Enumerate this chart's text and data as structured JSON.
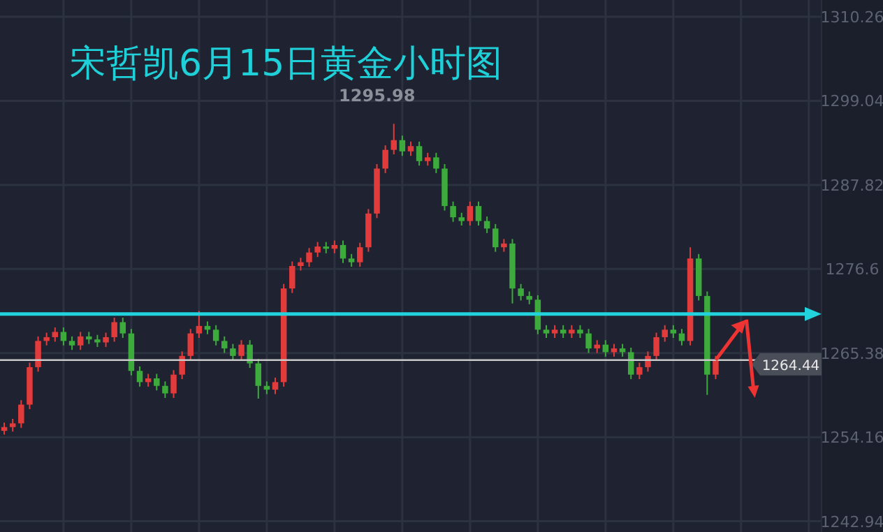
{
  "chart_data": {
    "type": "candlestick",
    "title": "宋哲凯6月15日黄金小时图",
    "categories": [
      null,
      null,
      null,
      null,
      null,
      null,
      null,
      null,
      null,
      null,
      null,
      null,
      null,
      null,
      null,
      null,
      null,
      null,
      null,
      null,
      null,
      null,
      null,
      null,
      null,
      null,
      null,
      null,
      null,
      null,
      null,
      null,
      null,
      null,
      null,
      null,
      null,
      null,
      null,
      null,
      null,
      null,
      null,
      null,
      null,
      null,
      null,
      null,
      null,
      null,
      null,
      null,
      null,
      null,
      null,
      null,
      null,
      null,
      null,
      null,
      null,
      null,
      null,
      null,
      null,
      null,
      null,
      null,
      null,
      null,
      null,
      null,
      null,
      null,
      null,
      null,
      null,
      null,
      null,
      null,
      null,
      null,
      null,
      null,
      null,
      null,
      null,
      null,
      null,
      null,
      null,
      null,
      null,
      null,
      null,
      null,
      null
    ],
    "ohlc": [
      [
        1255.0,
        1256.1,
        1254.5,
        1255.5
      ],
      [
        1255.5,
        1256.6,
        1254.9,
        1256.0
      ],
      [
        1256.0,
        1259.1,
        1255.4,
        1258.5
      ],
      [
        1258.5,
        1264.1,
        1257.9,
        1263.5
      ],
      [
        1263.5,
        1267.6,
        1262.9,
        1267.0
      ],
      [
        1267.0,
        1268.1,
        1266.4,
        1267.5
      ],
      [
        1267.5,
        1268.8,
        1266.9,
        1268.2
      ],
      [
        1268.2,
        1268.8,
        1266.4,
        1267.0
      ],
      [
        1267.0,
        1267.6,
        1265.8,
        1266.4
      ],
      [
        1266.4,
        1268.2,
        1265.8,
        1267.6
      ],
      [
        1267.6,
        1268.2,
        1266.6,
        1267.2
      ],
      [
        1267.2,
        1267.8,
        1266.2,
        1266.8
      ],
      [
        1266.8,
        1268.1,
        1266.2,
        1267.5
      ],
      [
        1267.5,
        1270.1,
        1266.9,
        1269.5
      ],
      [
        1269.5,
        1270.1,
        1267.4,
        1268.0
      ],
      [
        1268.0,
        1268.6,
        1262.4,
        1263.0
      ],
      [
        1263.0,
        1263.6,
        1260.9,
        1261.5
      ],
      [
        1261.5,
        1262.6,
        1260.9,
        1262.0
      ],
      [
        1262.0,
        1262.6,
        1260.4,
        1261.0
      ],
      [
        1261.0,
        1261.6,
        1259.4,
        1260.0
      ],
      [
        1260.0,
        1263.1,
        1259.4,
        1262.5
      ],
      [
        1262.5,
        1265.6,
        1261.9,
        1265.0
      ],
      [
        1265.0,
        1268.6,
        1264.4,
        1268.0
      ],
      [
        1268.0,
        1271.0,
        1267.4,
        1269.0
      ],
      [
        1269.0,
        1269.6,
        1267.9,
        1268.5
      ],
      [
        1268.5,
        1269.1,
        1266.4,
        1267.0
      ],
      [
        1267.0,
        1267.6,
        1265.4,
        1266.0
      ],
      [
        1266.0,
        1266.6,
        1264.4,
        1265.0
      ],
      [
        1265.0,
        1267.1,
        1264.4,
        1266.5
      ],
      [
        1266.5,
        1267.1,
        1263.4,
        1264.0
      ],
      [
        1264.0,
        1264.6,
        1259.3,
        1261.0
      ],
      [
        1261.0,
        1261.6,
        1259.9,
        1260.5
      ],
      [
        1260.5,
        1262.1,
        1259.9,
        1261.5
      ],
      [
        1261.5,
        1274.6,
        1260.9,
        1274.0
      ],
      [
        1274.0,
        1277.6,
        1273.4,
        1277.0
      ],
      [
        1277.0,
        1278.1,
        1276.4,
        1277.5
      ],
      [
        1277.5,
        1279.4,
        1276.9,
        1278.8
      ],
      [
        1278.8,
        1280.2,
        1278.2,
        1279.6
      ],
      [
        1279.6,
        1280.2,
        1278.7,
        1279.3
      ],
      [
        1279.3,
        1280.4,
        1278.7,
        1279.8
      ],
      [
        1279.8,
        1280.4,
        1277.4,
        1278.0
      ],
      [
        1278.0,
        1278.6,
        1276.9,
        1277.5
      ],
      [
        1277.5,
        1280.1,
        1276.9,
        1279.5
      ],
      [
        1279.5,
        1284.6,
        1278.9,
        1284.0
      ],
      [
        1284.0,
        1290.6,
        1283.4,
        1290.0
      ],
      [
        1290.0,
        1293.1,
        1289.4,
        1292.5
      ],
      [
        1292.5,
        1295.98,
        1291.9,
        1293.8
      ],
      [
        1293.8,
        1294.4,
        1291.7,
        1292.3
      ],
      [
        1292.3,
        1293.6,
        1291.7,
        1293.0
      ],
      [
        1293.0,
        1293.6,
        1290.4,
        1291.0
      ],
      [
        1291.0,
        1292.1,
        1290.4,
        1291.5
      ],
      [
        1291.5,
        1292.1,
        1289.4,
        1290.0
      ],
      [
        1290.0,
        1290.6,
        1284.4,
        1285.0
      ],
      [
        1285.0,
        1285.6,
        1282.9,
        1283.5
      ],
      [
        1283.5,
        1284.1,
        1282.4,
        1283.0
      ],
      [
        1283.0,
        1285.6,
        1282.4,
        1285.0
      ],
      [
        1285.0,
        1285.6,
        1282.4,
        1283.0
      ],
      [
        1283.0,
        1283.6,
        1281.4,
        1282.0
      ],
      [
        1282.0,
        1282.6,
        1278.9,
        1279.5
      ],
      [
        1279.5,
        1280.6,
        1278.9,
        1280.0
      ],
      [
        1280.0,
        1280.6,
        1272.0,
        1274.0
      ],
      [
        1274.0,
        1274.6,
        1272.4,
        1273.0
      ],
      [
        1273.0,
        1273.6,
        1271.9,
        1272.5
      ],
      [
        1272.5,
        1273.1,
        1267.9,
        1268.5
      ],
      [
        1268.5,
        1269.1,
        1267.4,
        1268.0
      ],
      [
        1268.0,
        1269.1,
        1267.4,
        1268.5
      ],
      [
        1268.5,
        1269.1,
        1267.4,
        1268.0
      ],
      [
        1268.0,
        1269.1,
        1267.4,
        1268.5
      ],
      [
        1268.5,
        1269.1,
        1267.4,
        1268.0
      ],
      [
        1268.0,
        1268.6,
        1265.4,
        1266.0
      ],
      [
        1266.0,
        1267.1,
        1265.4,
        1266.5
      ],
      [
        1266.5,
        1267.1,
        1264.9,
        1265.5
      ],
      [
        1265.5,
        1266.6,
        1264.9,
        1266.0
      ],
      [
        1266.0,
        1266.6,
        1264.9,
        1265.5
      ],
      [
        1265.5,
        1266.1,
        1261.9,
        1262.5
      ],
      [
        1262.5,
        1264.1,
        1261.9,
        1263.5
      ],
      [
        1263.5,
        1265.6,
        1262.9,
        1265.0
      ],
      [
        1265.0,
        1268.1,
        1264.4,
        1267.5
      ],
      [
        1267.5,
        1269.1,
        1266.9,
        1268.5
      ],
      [
        1268.5,
        1269.1,
        1267.4,
        1268.0
      ],
      [
        1268.0,
        1268.6,
        1266.4,
        1267.0
      ],
      [
        1267.0,
        1279.5,
        1266.4,
        1278.0
      ],
      [
        1278.0,
        1278.6,
        1272.4,
        1273.0
      ],
      [
        1273.0,
        1273.6,
        1259.8,
        1262.5
      ],
      [
        1262.5,
        1265.0,
        1261.9,
        1264.44
      ],
      null,
      null,
      null,
      null,
      null,
      null,
      null,
      null,
      null,
      null,
      null,
      null
    ],
    "ylim": [
      1241.5,
      1312.5
    ],
    "yticks": [
      1242.94,
      1254.16,
      1265.38,
      1276.6,
      1287.82,
      1299.04,
      1310.26
    ],
    "grid": true,
    "annotations": [
      "1295.98"
    ],
    "ref_lines": [
      {
        "axis": "y",
        "value": 1270.6,
        "color": "#22d3de"
      },
      {
        "axis": "y",
        "value": 1264.44,
        "label": "1264.44",
        "color": "#c8c8c8"
      }
    ]
  }
}
